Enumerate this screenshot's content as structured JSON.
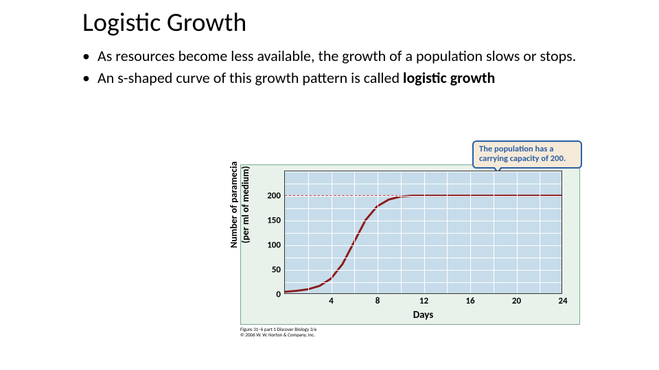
{
  "title": "Logistic Growth",
  "bullets": [
    {
      "pre": "As resources become less available, the growth of a population slows or stops.",
      "bold": ""
    },
    {
      "pre": "An s-shaped curve of this growth pattern is called ",
      "bold": "logistic growth"
    }
  ],
  "chart": {
    "type": "line",
    "background_color": "#c7dcea",
    "border_color": "#333333",
    "outer_bg": "#e8f2ea",
    "outer_border": "#7aa893",
    "grid_color": "#ffffff",
    "ylabel": "Number of paramecia\n(per ml of medium)",
    "xlabel": "Days",
    "ylim": [
      0,
      250
    ],
    "ytick_values": [
      0,
      50,
      100,
      150,
      200
    ],
    "xlim": [
      0,
      24
    ],
    "xtick_values": [
      4,
      8,
      12,
      16,
      20,
      24
    ],
    "x_grid": [
      2,
      4,
      6,
      8,
      10,
      12,
      14,
      16,
      18,
      20,
      22,
      24
    ],
    "y_grid": [
      25,
      50,
      75,
      100,
      125,
      150,
      175,
      200,
      225,
      250
    ],
    "curve_color": "#8b1a1a",
    "curve_width": 3,
    "carrying_capacity": 200,
    "cap_dash_color": "#d93b3b",
    "curve_points": [
      [
        0,
        3
      ],
      [
        1,
        5
      ],
      [
        2,
        8
      ],
      [
        3,
        15
      ],
      [
        4,
        30
      ],
      [
        5,
        60
      ],
      [
        6,
        105
      ],
      [
        7,
        150
      ],
      [
        8,
        178
      ],
      [
        9,
        192
      ],
      [
        10,
        198
      ],
      [
        11,
        200
      ],
      [
        12,
        200
      ],
      [
        14,
        200
      ],
      [
        16,
        200
      ],
      [
        20,
        200
      ],
      [
        24,
        200
      ]
    ],
    "callout_text": "The population has a carrying capacity of 200.",
    "callout_bg": "#f5e9d8",
    "callout_border": "#2b5fa4",
    "callout_text_color": "#2b5fa4",
    "label_fontsize": 13,
    "axis_label_fontsize": 15
  },
  "source": {
    "line1": "Figure 31–6 part 1 Discover Biology 3/e",
    "line2": "© 2006 W. W. Norton & Company, Inc."
  }
}
